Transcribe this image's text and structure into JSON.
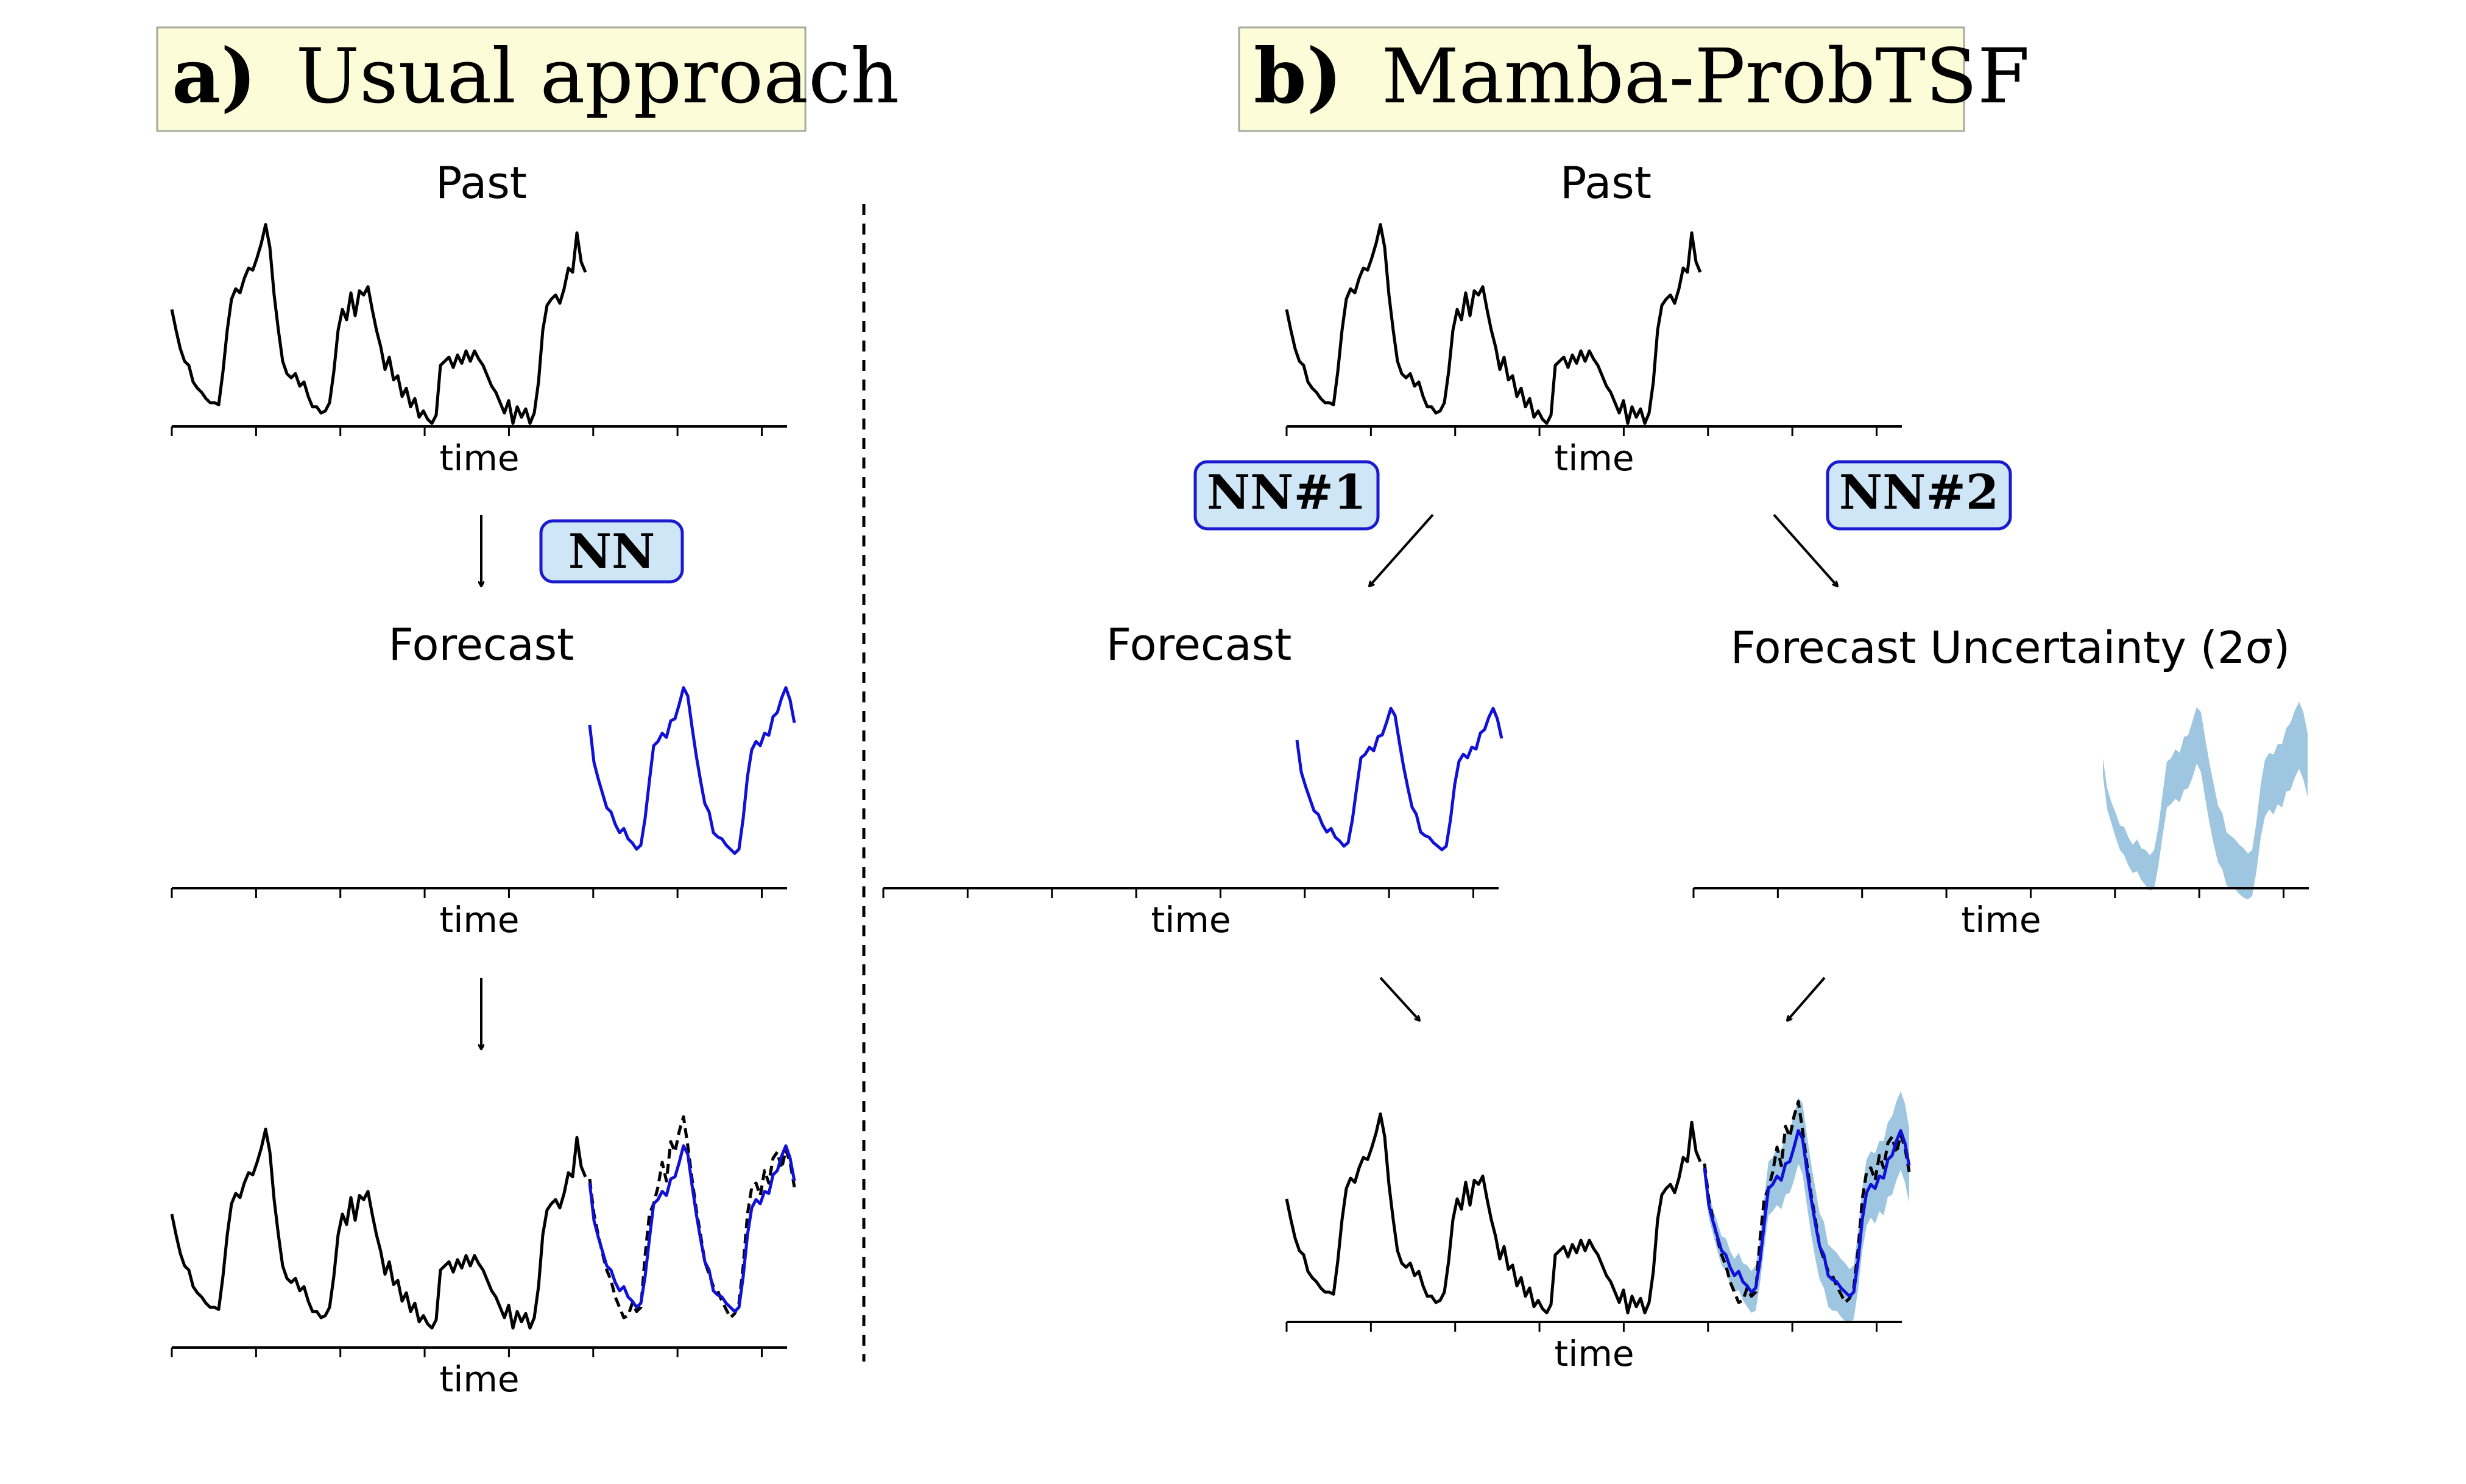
{
  "panel_a": {
    "letter": "a)",
    "title": "Usual approach",
    "past_label": "Past",
    "forecast_label": "Forecast",
    "nn_label": "NN"
  },
  "panel_b": {
    "letter": "b)",
    "title": "Mamba-ProbTSF",
    "past_label": "Past",
    "forecast_label": "Forecast",
    "uncertainty_label": "Forecast Uncertainty (2σ)",
    "nn1_label": "NN#1",
    "nn2_label": "NN#2"
  },
  "axis_label": "time",
  "colors": {
    "header_bg": "#fdfcd9",
    "header_border": "#a8a8a0",
    "nn_box_fill": "#cfe6f7",
    "nn_box_border": "#1a1ad0",
    "past_line": "#000000",
    "forecast_line": "#1010d8",
    "uncertainty_band": "#8dbcdc",
    "truth_dashed": "#000000"
  },
  "chart_data": {
    "type": "line",
    "past": [
      0.55,
      0.45,
      0.36,
      0.3,
      0.28,
      0.2,
      0.17,
      0.15,
      0.12,
      0.1,
      0.1,
      0.09,
      0.25,
      0.45,
      0.6,
      0.65,
      0.63,
      0.7,
      0.75,
      0.74,
      0.8,
      0.87,
      0.96,
      0.85,
      0.62,
      0.45,
      0.3,
      0.24,
      0.22,
      0.24,
      0.18,
      0.2,
      0.13,
      0.08,
      0.08,
      0.05,
      0.06,
      0.1,
      0.25,
      0.45,
      0.55,
      0.5,
      0.63,
      0.52,
      0.64,
      0.62,
      0.66,
      0.55,
      0.45,
      0.37,
      0.26,
      0.32,
      0.21,
      0.23,
      0.13,
      0.17,
      0.08,
      0.12,
      0.03,
      0.06,
      0.02,
      0.0,
      0.04,
      0.28,
      0.3,
      0.32,
      0.27,
      0.33,
      0.29,
      0.35,
      0.3,
      0.35,
      0.31,
      0.28,
      0.23,
      0.18,
      0.15,
      0.1,
      0.05,
      0.11,
      0.0,
      0.08,
      0.03,
      0.07,
      0.0,
      0.05,
      0.2,
      0.45,
      0.57,
      0.6,
      0.62,
      0.58,
      0.65,
      0.75,
      0.73,
      0.92,
      0.78,
      0.73
    ],
    "forecast_mean": [
      0.7,
      0.52,
      0.44,
      0.37,
      0.3,
      0.28,
      0.22,
      0.18,
      0.2,
      0.15,
      0.13,
      0.1,
      0.12,
      0.25,
      0.43,
      0.6,
      0.62,
      0.66,
      0.64,
      0.72,
      0.73,
      0.8,
      0.88,
      0.84,
      0.69,
      0.55,
      0.43,
      0.32,
      0.28,
      0.18,
      0.16,
      0.15,
      0.12,
      0.1,
      0.08,
      0.1,
      0.25,
      0.45,
      0.58,
      0.62,
      0.6,
      0.66,
      0.65,
      0.74,
      0.76,
      0.83,
      0.88,
      0.82,
      0.71
    ],
    "forecast_sigma": [
      0.05,
      0.06,
      0.06,
      0.07,
      0.07,
      0.08,
      0.08,
      0.08,
      0.09,
      0.09,
      0.1,
      0.1,
      0.11,
      0.11,
      0.12,
      0.13,
      0.13,
      0.14,
      0.14,
      0.15,
      0.15,
      0.16,
      0.16,
      0.17,
      0.17,
      0.17,
      0.17,
      0.16,
      0.16,
      0.15,
      0.15,
      0.14,
      0.14,
      0.14,
      0.13,
      0.13,
      0.14,
      0.15,
      0.16,
      0.16,
      0.17,
      0.17,
      0.18,
      0.18,
      0.19,
      0.19,
      0.19,
      0.19,
      0.18
    ],
    "ground_truth": [
      0.72,
      0.55,
      0.45,
      0.36,
      0.28,
      0.23,
      0.15,
      0.1,
      0.05,
      0.06,
      0.12,
      0.08,
      0.1,
      0.35,
      0.55,
      0.6,
      0.68,
      0.8,
      0.71,
      0.9,
      0.85,
      0.95,
      1.02,
      0.88,
      0.72,
      0.57,
      0.45,
      0.32,
      0.26,
      0.2,
      0.18,
      0.13,
      0.09,
      0.05,
      0.07,
      0.12,
      0.3,
      0.55,
      0.68,
      0.7,
      0.64,
      0.76,
      0.7,
      0.82,
      0.85,
      0.77,
      0.86,
      0.8,
      0.68
    ]
  }
}
